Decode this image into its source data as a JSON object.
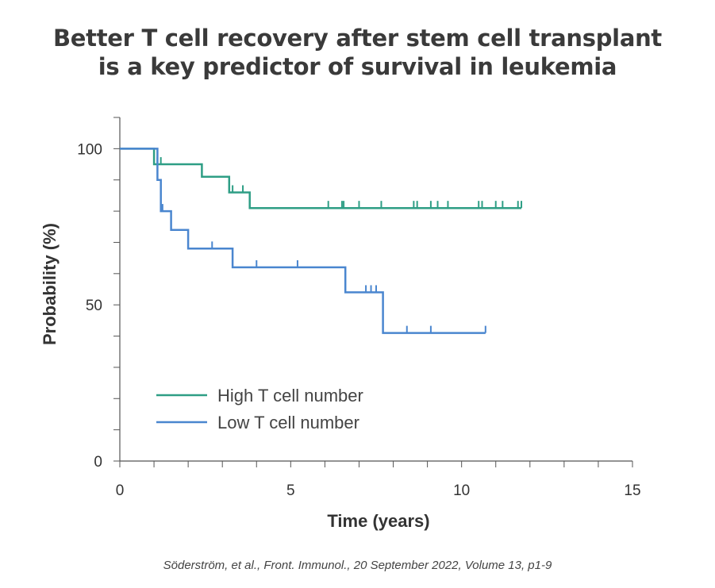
{
  "title_line1": "Better T cell recovery after stem cell transplant",
  "title_line2": "is a key predictor of survival in leukemia",
  "citation": "Söderström, et al., Front. Immunol., 20 September 2022, Volume 13, p1-9",
  "chart_data": {
    "type": "line",
    "subtype": "kaplan-meier",
    "xlabel": "Time (years)",
    "ylabel": "Probability (%)",
    "xlim": [
      0,
      15
    ],
    "ylim": [
      0,
      110
    ],
    "xticks_major": [
      0,
      5,
      10,
      15
    ],
    "yticks_major": [
      0,
      50,
      100
    ],
    "grid": false,
    "legend_position": "bottom-left",
    "series": [
      {
        "name": "High T cell number",
        "color": "#2e9e85",
        "steps": [
          [
            0,
            100
          ],
          [
            1.0,
            100
          ],
          [
            1.0,
            95
          ],
          [
            2.4,
            95
          ],
          [
            2.4,
            91
          ],
          [
            3.2,
            91
          ],
          [
            3.2,
            86
          ],
          [
            3.8,
            86
          ],
          [
            3.8,
            81
          ],
          [
            11.75,
            81
          ]
        ],
        "censored": [
          [
            1.1,
            95
          ],
          [
            1.2,
            95
          ],
          [
            3.3,
            86
          ],
          [
            3.6,
            86
          ],
          [
            6.1,
            81
          ],
          [
            6.5,
            81
          ],
          [
            6.55,
            81
          ],
          [
            7.0,
            81
          ],
          [
            7.65,
            81
          ],
          [
            8.6,
            81
          ],
          [
            8.7,
            81
          ],
          [
            9.1,
            81
          ],
          [
            9.3,
            81
          ],
          [
            9.6,
            81
          ],
          [
            10.5,
            81
          ],
          [
            10.6,
            81
          ],
          [
            11.0,
            81
          ],
          [
            11.2,
            81
          ],
          [
            11.65,
            81
          ],
          [
            11.75,
            81
          ]
        ]
      },
      {
        "name": "Low T cell number",
        "color": "#4a86cf",
        "steps": [
          [
            0,
            100
          ],
          [
            1.1,
            100
          ],
          [
            1.1,
            90
          ],
          [
            1.2,
            90
          ],
          [
            1.2,
            80
          ],
          [
            1.5,
            80
          ],
          [
            1.5,
            74
          ],
          [
            2.0,
            74
          ],
          [
            2.0,
            68
          ],
          [
            3.3,
            68
          ],
          [
            3.3,
            62
          ],
          [
            6.6,
            62
          ],
          [
            6.6,
            54
          ],
          [
            7.7,
            54
          ],
          [
            7.7,
            41
          ],
          [
            10.7,
            41
          ]
        ],
        "censored": [
          [
            1.25,
            80
          ],
          [
            2.7,
            68
          ],
          [
            4.0,
            62
          ],
          [
            5.2,
            62
          ],
          [
            7.2,
            54
          ],
          [
            7.35,
            54
          ],
          [
            7.5,
            54
          ],
          [
            8.4,
            41
          ],
          [
            9.1,
            41
          ],
          [
            10.7,
            41
          ]
        ]
      }
    ]
  }
}
